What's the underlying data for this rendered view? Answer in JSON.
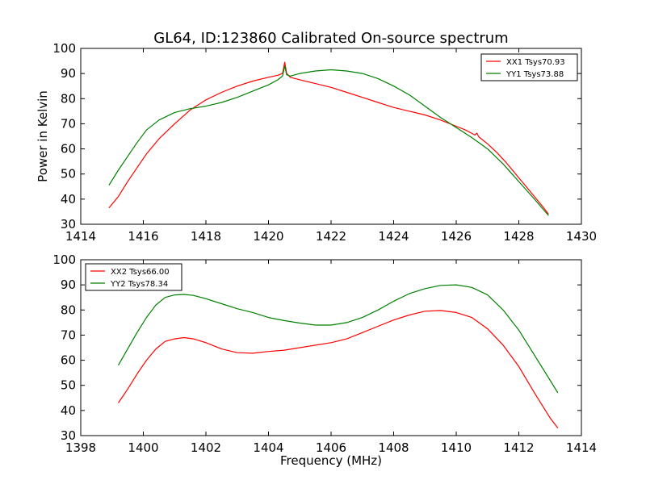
{
  "chart_data": [
    {
      "type": "line",
      "title": "GL64, ID:123860 Calibrated On-source spectrum",
      "xlabel": "",
      "ylabel": "Power in Kelvin",
      "xlim": [
        1414,
        1430
      ],
      "ylim": [
        30,
        100
      ],
      "xticks": [
        1414,
        1416,
        1418,
        1420,
        1422,
        1424,
        1426,
        1428,
        1430
      ],
      "yticks": [
        30,
        40,
        50,
        60,
        70,
        80,
        90,
        100
      ],
      "legend_position": "top-right",
      "grid": false,
      "series": [
        {
          "name": "XX1 Tsys70.93",
          "color": "#ff0000",
          "x": [
            1414.9,
            1415.2,
            1415.5,
            1415.8,
            1416.1,
            1416.5,
            1417.0,
            1417.5,
            1418.0,
            1418.5,
            1419.0,
            1419.5,
            1420.0,
            1420.3,
            1420.45,
            1420.52,
            1420.58,
            1420.7,
            1421.0,
            1421.5,
            1422.0,
            1422.5,
            1423.0,
            1423.5,
            1424.0,
            1424.5,
            1425.0,
            1425.5,
            1426.0,
            1426.3,
            1426.6,
            1426.66,
            1426.72,
            1427.0,
            1427.3,
            1427.6,
            1427.9,
            1428.2,
            1428.5,
            1428.8,
            1428.95
          ],
          "y": [
            36.5,
            41.0,
            47.0,
            52.5,
            58.0,
            64.0,
            70.0,
            75.5,
            79.5,
            82.5,
            85.0,
            87.0,
            88.5,
            89.3,
            90.0,
            94.5,
            90.0,
            88.5,
            87.5,
            86.0,
            84.5,
            82.5,
            80.5,
            78.5,
            76.5,
            75.0,
            73.5,
            71.5,
            69.0,
            67.5,
            65.5,
            66.3,
            64.8,
            62.0,
            58.5,
            54.5,
            50.0,
            45.5,
            41.0,
            36.5,
            34.0
          ]
        },
        {
          "name": "YY1 Tsys73.88",
          "color": "#008000",
          "x": [
            1414.9,
            1415.2,
            1415.5,
            1415.8,
            1416.1,
            1416.5,
            1417.0,
            1417.5,
            1418.0,
            1418.5,
            1419.0,
            1419.5,
            1420.0,
            1420.3,
            1420.45,
            1420.52,
            1420.58,
            1420.7,
            1421.0,
            1421.5,
            1422.0,
            1422.5,
            1423.0,
            1423.5,
            1424.0,
            1424.5,
            1425.0,
            1425.5,
            1426.0,
            1426.5,
            1427.0,
            1427.5,
            1428.0,
            1428.5,
            1428.95
          ],
          "y": [
            45.5,
            51.5,
            57.0,
            62.5,
            67.5,
            71.5,
            74.5,
            76.0,
            77.0,
            78.5,
            80.5,
            83.0,
            85.5,
            87.5,
            89.0,
            93.0,
            89.5,
            89.0,
            90.0,
            91.0,
            91.5,
            91.0,
            90.0,
            88.0,
            85.0,
            81.5,
            77.0,
            72.5,
            68.5,
            64.5,
            60.0,
            54.0,
            47.0,
            40.0,
            33.5
          ]
        }
      ]
    },
    {
      "type": "line",
      "title": "",
      "xlabel": "Frequency (MHz)",
      "ylabel": "",
      "xlim": [
        1398,
        1414
      ],
      "ylim": [
        30,
        100
      ],
      "xticks": [
        1398,
        1400,
        1402,
        1404,
        1406,
        1408,
        1410,
        1412,
        1414
      ],
      "yticks": [
        30,
        40,
        50,
        60,
        70,
        80,
        90,
        100
      ],
      "legend_position": "top-left",
      "grid": false,
      "series": [
        {
          "name": "XX2 Tsys66.00",
          "color": "#ff0000",
          "x": [
            1399.2,
            1399.5,
            1399.8,
            1400.1,
            1400.4,
            1400.7,
            1401.0,
            1401.3,
            1401.6,
            1402.0,
            1402.5,
            1403.0,
            1403.5,
            1404.0,
            1404.5,
            1405.0,
            1405.5,
            1406.0,
            1406.5,
            1407.0,
            1407.5,
            1408.0,
            1408.5,
            1409.0,
            1409.5,
            1410.0,
            1410.5,
            1411.0,
            1411.5,
            1412.0,
            1412.5,
            1413.0,
            1413.25
          ],
          "y": [
            43.0,
            48.5,
            54.5,
            60.0,
            64.5,
            67.5,
            68.5,
            69.0,
            68.5,
            67.0,
            64.5,
            63.0,
            62.8,
            63.5,
            64.0,
            65.0,
            66.0,
            67.0,
            68.5,
            71.0,
            73.5,
            76.0,
            78.0,
            79.5,
            79.8,
            79.0,
            77.0,
            72.5,
            66.0,
            57.5,
            47.0,
            37.0,
            33.0
          ]
        },
        {
          "name": "YY2 Tsys78.34",
          "color": "#008000",
          "x": [
            1399.2,
            1399.5,
            1399.8,
            1400.1,
            1400.4,
            1400.7,
            1401.0,
            1401.3,
            1401.6,
            1402.0,
            1402.5,
            1403.0,
            1403.5,
            1404.0,
            1404.5,
            1405.0,
            1405.5,
            1406.0,
            1406.5,
            1407.0,
            1407.5,
            1408.0,
            1408.5,
            1409.0,
            1409.5,
            1410.0,
            1410.5,
            1411.0,
            1411.5,
            1412.0,
            1412.5,
            1413.0,
            1413.25
          ],
          "y": [
            58.0,
            64.5,
            71.0,
            77.0,
            82.0,
            85.0,
            86.0,
            86.2,
            85.8,
            84.5,
            82.5,
            80.5,
            79.0,
            77.0,
            75.8,
            74.8,
            74.0,
            74.0,
            75.0,
            77.0,
            80.0,
            83.5,
            86.5,
            88.5,
            89.8,
            90.0,
            89.0,
            86.0,
            80.0,
            72.0,
            62.0,
            52.0,
            47.0
          ]
        }
      ]
    }
  ]
}
